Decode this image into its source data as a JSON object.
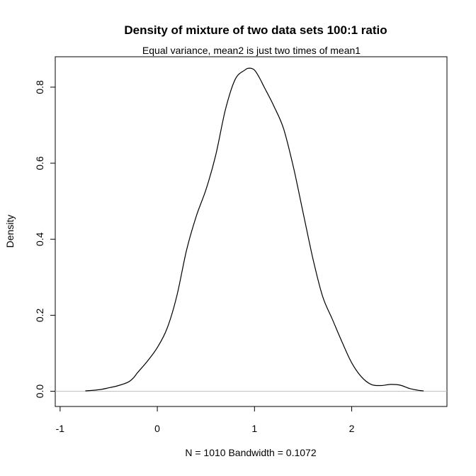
{
  "chart_data": {
    "type": "line",
    "title": "Density of mixture of two data sets 100:1 ratio",
    "subtitle": "Equal variance, mean2 is just two times of mean1",
    "xlabel": "N = 1010   Bandwidth = 0.1072",
    "ylabel": "Density",
    "xlim": [
      -1.05,
      2.98
    ],
    "ylim": [
      -0.04,
      0.88
    ],
    "x_ticks": [
      -1,
      0,
      1,
      2
    ],
    "x_tick_labels": [
      "-1",
      "0",
      "1",
      "2"
    ],
    "y_ticks": [
      0.0,
      0.2,
      0.4,
      0.6,
      0.8
    ],
    "y_tick_labels": [
      "0.0",
      "0.2",
      "0.4",
      "0.6",
      "0.8"
    ],
    "baseline": 0,
    "grid": false,
    "legend": "none",
    "colors": {
      "line": "#000000",
      "baseline": "#bebebe",
      "frame": "#000000"
    },
    "series": [
      {
        "x": [
          -0.74,
          -0.6,
          -0.5,
          -0.4,
          -0.3,
          -0.25,
          -0.2,
          -0.1,
          0.0,
          0.1,
          0.2,
          0.3,
          0.4,
          0.5,
          0.6,
          0.7,
          0.8,
          0.9,
          0.95,
          1.0,
          1.05,
          1.1,
          1.2,
          1.3,
          1.4,
          1.5,
          1.6,
          1.7,
          1.8,
          1.9,
          2.0,
          2.1,
          2.2,
          2.3,
          2.4,
          2.5,
          2.6,
          2.7,
          2.74
        ],
        "y": [
          0.001,
          0.004,
          0.009,
          0.015,
          0.024,
          0.034,
          0.05,
          0.08,
          0.115,
          0.165,
          0.25,
          0.37,
          0.46,
          0.53,
          0.62,
          0.74,
          0.82,
          0.845,
          0.85,
          0.845,
          0.825,
          0.8,
          0.75,
          0.69,
          0.59,
          0.47,
          0.35,
          0.25,
          0.19,
          0.13,
          0.075,
          0.038,
          0.018,
          0.015,
          0.018,
          0.016,
          0.007,
          0.002,
          0.001
        ]
      }
    ]
  }
}
